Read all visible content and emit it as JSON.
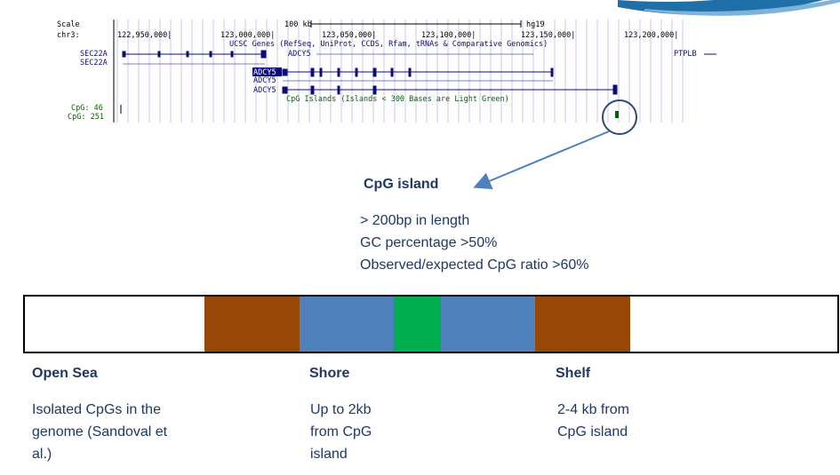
{
  "browser": {
    "scale_label": "Scale",
    "chrom_label": "chr3:",
    "scale_text": "100 kb",
    "assembly": "hg19",
    "positions": [
      "122,950,000|",
      "123,000,000|",
      "123,050,000|",
      "123,100,000|",
      "123,150,000|",
      "123,200,000|"
    ],
    "track_title": "UCSC Genes (RefSeq, UniProt, CCDS, Rfam, tRNAs & Comparative Genomics)",
    "genes": {
      "sec22a_1": "SEC22A",
      "sec22a_2": "SEC22A",
      "adcy5_top": "ADCY5",
      "adcy5_1": "ADCY5",
      "adcy5_2": "ADCY5",
      "adcy5_3": "ADCY5",
      "ptplb": "PTPLB"
    },
    "cpg_track_title": "CpG Islands (Islands < 300 Bases are Light Green)",
    "cpg_label_1": "CpG: 46",
    "cpg_label_2": "CpG: 251"
  },
  "cpg_island": {
    "title": "CpG island",
    "criteria": [
      "> 200bp in length",
      "GC percentage >50%",
      "Observed/expected CpG ratio >60%"
    ]
  },
  "regions": {
    "open_sea": {
      "label": "Open Sea",
      "desc": [
        "Isolated CpGs in the",
        "genome (Sandoval et",
        "al.)"
      ]
    },
    "shore": {
      "label": "Shore",
      "desc": [
        "Up to 2kb",
        "from CpG",
        "island"
      ]
    },
    "shelf": {
      "label": "Shelf",
      "desc": [
        "2-4 kb from",
        "CpG island"
      ]
    }
  },
  "colors": {
    "shelf": "#974806",
    "shore": "#4f81bd",
    "island": "#00b050",
    "text": "#1f3864",
    "arrow": "#4f81bd",
    "gene": "#0c0c78",
    "cpg": "#006400"
  }
}
